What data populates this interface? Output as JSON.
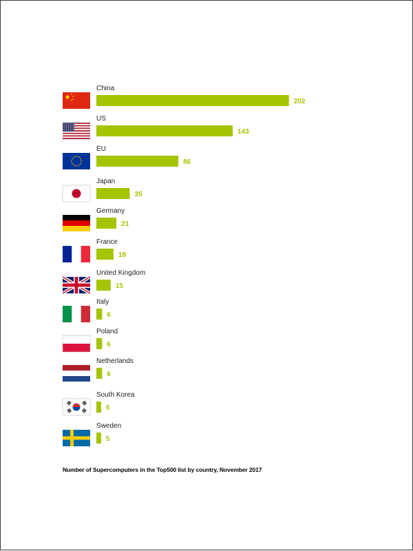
{
  "chart_data": {
    "type": "bar",
    "orientation": "horizontal",
    "title": "",
    "caption": "Number of Supercomputers in the Top500 list by country, November 2017",
    "categories": [
      "China",
      "US",
      "EU",
      "Japan",
      "Germany",
      "France",
      "United Kingdom",
      "Italy",
      "Poland",
      "Netherlands",
      "South Korea",
      "Sweden"
    ],
    "values": [
      202,
      143,
      86,
      35,
      21,
      18,
      15,
      6,
      6,
      6,
      5,
      5
    ],
    "flags": [
      "china-flag",
      "us-flag",
      "eu-flag",
      "japan-flag",
      "germany-flag",
      "france-flag",
      "uk-flag",
      "italy-flag",
      "poland-flag",
      "netherlands-flag",
      "south-korea-flag",
      "sweden-flag"
    ],
    "data_labels": true,
    "grid": false,
    "legend": "none",
    "xlabel": "",
    "ylabel": ""
  },
  "colors": {
    "bar": "#a4c400",
    "value_label": "#a4c400",
    "category_label": "#222222"
  }
}
